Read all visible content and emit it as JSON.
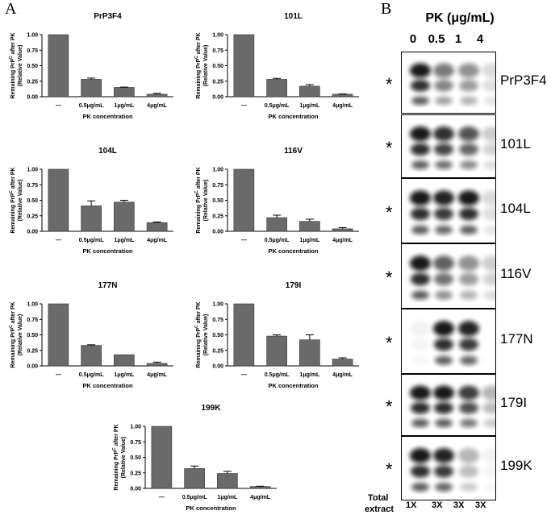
{
  "panel_a_letter": "A",
  "panel_b_letter": "B",
  "shared": {
    "ylabel_lines": [
      "Remaining PrP",
      "C",
      " after PK",
      "(Relative Value)"
    ],
    "xlabel": "PK concentration",
    "yticks": [
      "0.00",
      "0.25",
      "0.50",
      "0.75",
      "1.00"
    ]
  },
  "chart_data": [
    {
      "type": "bar",
      "title": "PrP3F4",
      "categories": [
        "—",
        "0.5μg/mL",
        "1μg/mL",
        "4μg/mL"
      ],
      "values": [
        1.0,
        0.28,
        0.15,
        0.04
      ],
      "errors": [
        0,
        0.02,
        0.005,
        0.015
      ],
      "xlabel": "PK concentration",
      "ylabel": "Remaining PrPC after PK (Relative Value)",
      "ylim": [
        0,
        1
      ]
    },
    {
      "type": "bar",
      "title": "101L",
      "categories": [
        "—",
        "0.5μg/mL",
        "1μg/mL",
        "4μg/mL"
      ],
      "values": [
        1.0,
        0.28,
        0.17,
        0.04
      ],
      "errors": [
        0,
        0.015,
        0.025,
        0.005
      ],
      "xlabel": "PK concentration",
      "ylabel": "Remaining PrPC after PK (Relative Value)",
      "ylim": [
        0,
        1
      ]
    },
    {
      "type": "bar",
      "title": "104L",
      "categories": [
        "—",
        "0.5μg/mL",
        "1μg/mL",
        "4μg/mL"
      ],
      "values": [
        1.0,
        0.41,
        0.47,
        0.14
      ],
      "errors": [
        0,
        0.08,
        0.03,
        0.01
      ],
      "xlabel": "PK concentration",
      "ylabel": "Remaining PrPC after PK (Relative Value)",
      "ylim": [
        0,
        1
      ]
    },
    {
      "type": "bar",
      "title": "116V",
      "categories": [
        "—",
        "0.5μg/mL",
        "1μg/mL",
        "4μg/mL"
      ],
      "values": [
        1.0,
        0.22,
        0.16,
        0.04
      ],
      "errors": [
        0,
        0.04,
        0.035,
        0.02
      ],
      "xlabel": "PK concentration",
      "ylabel": "Remaining PrPC after PK (Relative Value)",
      "ylim": [
        0,
        1
      ]
    },
    {
      "type": "bar",
      "title": "177N",
      "categories": [
        "—",
        "0.5μg/mL",
        "1μg/mL",
        "4μg/mL"
      ],
      "values": [
        1.0,
        0.33,
        0.18,
        0.04
      ],
      "errors": [
        0,
        0.01,
        0.0,
        0.02
      ],
      "xlabel": "PK concentration",
      "ylabel": "Remaining PrPC after PK (Relative Value)",
      "ylim": [
        0,
        1
      ]
    },
    {
      "type": "bar",
      "title": "179I",
      "categories": [
        "—",
        "0.5μg/mL",
        "1μg/mL",
        "4μg/mL"
      ],
      "values": [
        1.0,
        0.48,
        0.42,
        0.11
      ],
      "errors": [
        0,
        0.02,
        0.08,
        0.02
      ],
      "xlabel": "PK concentration",
      "ylabel": "Remaining PrPC after PK (Relative Value)",
      "ylim": [
        0,
        1
      ]
    },
    {
      "type": "bar",
      "title": "199K",
      "categories": [
        "—",
        "0.5μg/mL",
        "1μg/mL",
        "4μg/mL"
      ],
      "values": [
        1.0,
        0.32,
        0.24,
        0.03
      ],
      "errors": [
        0,
        0.04,
        0.035,
        0.005
      ],
      "xlabel": "PK concentration",
      "ylabel": "Remaining PrPC after PK (Relative Value)",
      "ylim": [
        0,
        1
      ]
    }
  ],
  "blot": {
    "header": "PK (μg/mL)",
    "lanes": [
      "0",
      "0.5",
      "1",
      "4"
    ],
    "asterisk": "*",
    "rows": [
      "PrP3F4",
      "101L",
      "104L",
      "116V",
      "177N",
      "179I",
      "199K"
    ],
    "footer_label_1": "Total",
    "footer_label_2": "extract",
    "footer_values": [
      "1X",
      "3X",
      "3X",
      "3X"
    ]
  },
  "colors": {
    "bar": "#6a6a6a",
    "bar_stroke": "#333333",
    "blot_dark": "#0d0d0d"
  }
}
